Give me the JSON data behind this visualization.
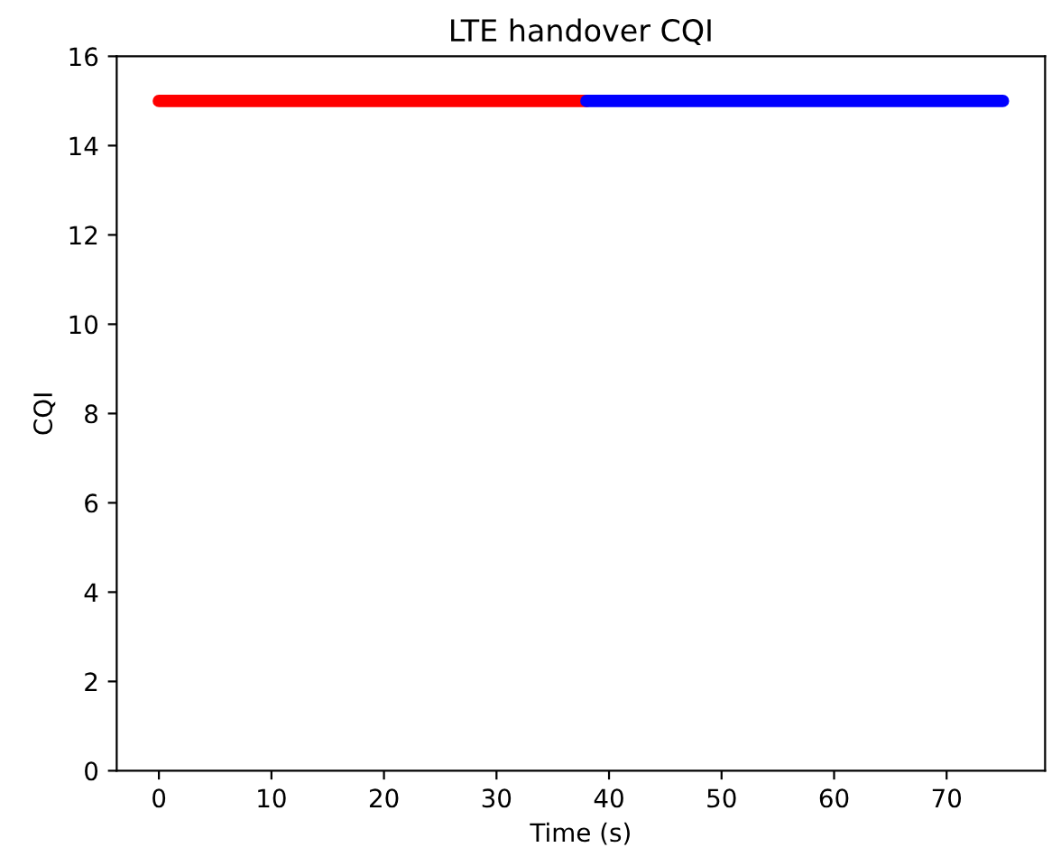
{
  "chart_data": {
    "type": "line",
    "title": "LTE handover CQI",
    "xlabel": "Time (s)",
    "ylabel": "CQI",
    "series": [
      {
        "color": "#ff0000",
        "x": [
          0,
          38
        ],
        "values": [
          15,
          15
        ]
      },
      {
        "color": "#0000ff",
        "x": [
          38,
          75
        ],
        "values": [
          15,
          15
        ]
      }
    ],
    "xlim": [
      -3.75,
      78.75
    ],
    "xticks": [
      0,
      10,
      20,
      30,
      40,
      50,
      60,
      70
    ],
    "ylim": [
      0,
      16
    ],
    "yticks": [
      0,
      2,
      4,
      6,
      8,
      10,
      12,
      14,
      16
    ],
    "grid": false
  }
}
